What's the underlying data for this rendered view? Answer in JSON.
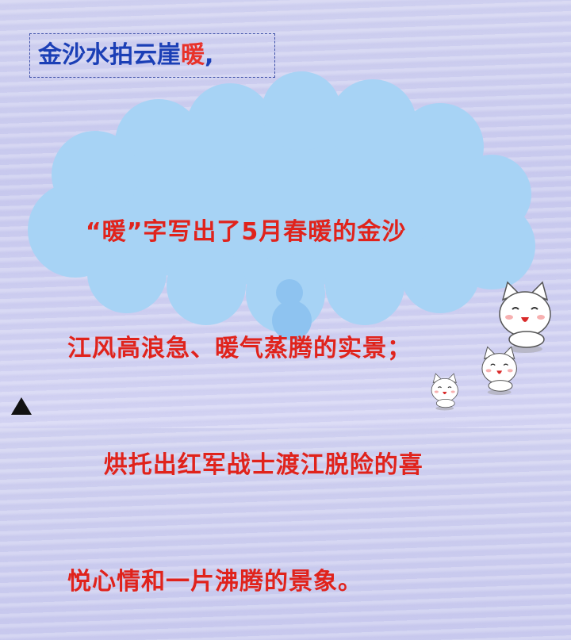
{
  "title": {
    "main": "金沙水拍云崖",
    "accent": "暖",
    "punct": ","
  },
  "bubble": {
    "lines": [
      "  “暖”字写出了5月春暖的金沙",
      "江风高浪急、暖气蒸腾的实景；",
      "    烘托出红军战士渡江脱险的喜",
      "悦心情和一片沸腾的景象。"
    ]
  },
  "colors": {
    "title_blue": "#1b3fb6",
    "accent_red": "#e8322a",
    "body_red": "#e0231c",
    "cloud_blue": "#a7d3f5"
  },
  "icons": {
    "nav": "triangle-up-icon",
    "decor": "cat-face-icon"
  }
}
